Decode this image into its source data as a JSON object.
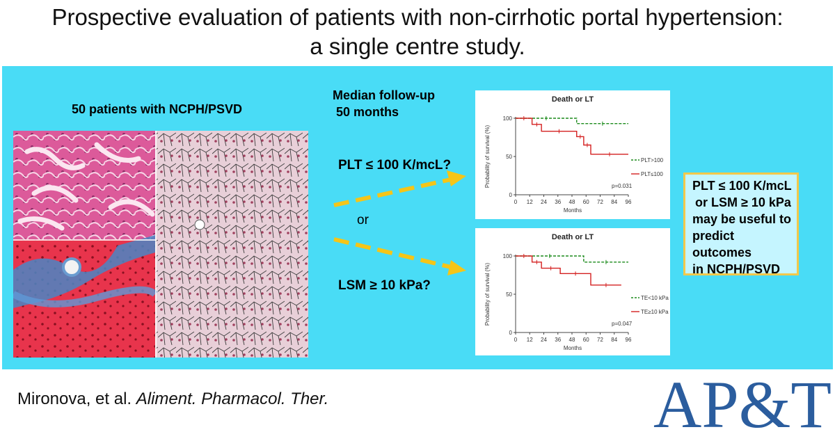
{
  "title": {
    "line1": "Prospective evaluation of patients with non-cirrhotic portal hypertension:",
    "line2": "a single centre study."
  },
  "cohort_label": "50 patients with NCPH/PSVD",
  "followup": {
    "line1": "Median follow-up",
    "line2": "50 months"
  },
  "predictors": {
    "plt": "PLT ≤ 100 K/mcL?",
    "or": "or",
    "lsm": "LSM ≥ 10 kPa?"
  },
  "conclusion": {
    "lines": [
      "PLT ≤ 100 K/mcL",
      "or LSM ≥ 10 kPa",
      "may be useful to",
      "predict outcomes",
      "in NCPH/PSVD"
    ]
  },
  "citation": {
    "authors": "Mironova, et al.",
    "journal": "Aliment. Pharmacol. Ther."
  },
  "logo": "AP&T",
  "colors": {
    "panel": "#49dcf6",
    "arrow": "#f5c518",
    "conclusion_border": "#f2c84b",
    "logo": "#2b5d9e",
    "green": "#1a8a1a",
    "red": "#d42020"
  },
  "chart_data": [
    {
      "type": "line",
      "title": "Death or LT",
      "xlabel": "Months",
      "ylabel": "Probability of survival (%)",
      "xlim": [
        0,
        96
      ],
      "ylim": [
        0,
        100
      ],
      "xticks": [
        "0",
        "12",
        "24",
        "36",
        "48",
        "60",
        "72",
        "84",
        "96"
      ],
      "yticks": [
        "0",
        "50",
        "100"
      ],
      "legend_position": "right",
      "annotation": "p=0.031",
      "series": [
        {
          "name": "PLT>100",
          "color": "#1a8a1a",
          "style": "dashed",
          "x": [
            0,
            52,
            52,
            96
          ],
          "y": [
            100,
            100,
            93,
            93
          ]
        },
        {
          "name": "PLT≤100",
          "color": "#d42020",
          "style": "solid",
          "x": [
            0,
            14,
            14,
            22,
            22,
            52,
            52,
            58,
            58,
            64,
            64,
            96
          ],
          "y": [
            100,
            100,
            92,
            92,
            83,
            83,
            76,
            76,
            65,
            65,
            53,
            53
          ]
        }
      ]
    },
    {
      "type": "line",
      "title": "Death or LT",
      "xlabel": "Months",
      "ylabel": "Probability of survival (%)",
      "xlim": [
        0,
        96
      ],
      "ylim": [
        0,
        100
      ],
      "xticks": [
        "0",
        "12",
        "24",
        "36",
        "48",
        "60",
        "72",
        "84",
        "96"
      ],
      "yticks": [
        "0",
        "50",
        "100"
      ],
      "legend_position": "right",
      "annotation": "p=0.047",
      "series": [
        {
          "name": "TE<10 kPa",
          "color": "#1a8a1a",
          "style": "dashed",
          "x": [
            0,
            58,
            58,
            96
          ],
          "y": [
            100,
            100,
            92,
            92
          ]
        },
        {
          "name": "TE≥10 kPa",
          "color": "#d42020",
          "style": "solid",
          "x": [
            0,
            14,
            14,
            22,
            22,
            38,
            38,
            64,
            64,
            90
          ],
          "y": [
            100,
            100,
            92,
            92,
            84,
            84,
            77,
            77,
            62,
            62
          ]
        }
      ]
    }
  ]
}
